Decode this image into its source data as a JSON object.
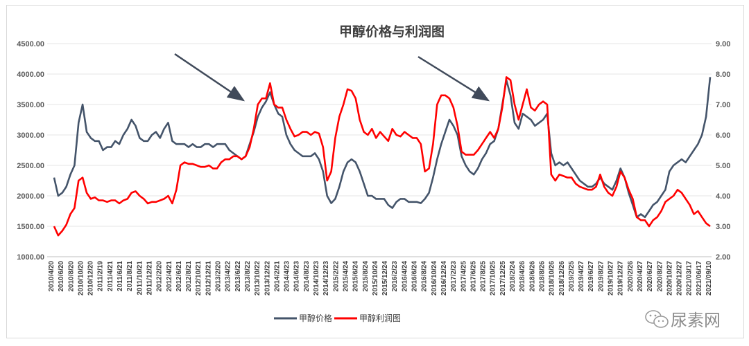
{
  "chart_data": {
    "type": "line",
    "title": "甲醇价格与利润图",
    "left_axis": {
      "min": 1000,
      "max": 4500,
      "step": 500,
      "ticks": [
        "1000.00",
        "1500.00",
        "2000.00",
        "2500.00",
        "3000.00",
        "3500.00",
        "4000.00",
        "4500.00"
      ]
    },
    "right_axis": {
      "min": 2,
      "max": 9,
      "step": 1,
      "ticks": [
        "2.00",
        "3.00",
        "4.00",
        "5.00",
        "6.00",
        "7.00",
        "8.00",
        "9.00"
      ]
    },
    "x_ticks": [
      "2010/4/20",
      "2010/6/20",
      "2010/8/20",
      "2010/10/20",
      "2010/12/20",
      "2011/2/19",
      "2011/4/21",
      "2011/6/21",
      "2011/8/21",
      "2011/10/21",
      "2011/12/21",
      "2012/2/20",
      "2012/4/21",
      "2012/6/21",
      "2012/8/21",
      "2012/10/21",
      "2012/12/21",
      "2013/2/20",
      "2013/4/22",
      "2013/6/22",
      "2013/8/22",
      "2013/10/22",
      "2013/12/22",
      "2014/2/21",
      "2014/4/23",
      "2014/6/23",
      "2014/8/23",
      "2014/10/23",
      "2014/12/23",
      "2015/2/22",
      "2015/4/24",
      "2015/6/24",
      "2015/8/24",
      "2015/10/24",
      "2015/12/24",
      "2016/2/23",
      "2016/4/24",
      "2016/6/24",
      "2016/8/24",
      "2016/10/24",
      "2016/12/24",
      "2017/2/23",
      "2017/4/25",
      "2017/6/25",
      "2017/8/25",
      "2017/10/25",
      "2017/12/25",
      "2018/2/24",
      "2018/4/26",
      "2018/6/26",
      "2018/8/26",
      "2018/10/26",
      "2018/12/26",
      "2019/2/25",
      "2019/4/27",
      "2019/6/27",
      "2019/8/27",
      "2019/10/27",
      "2019/12/27",
      "2020/2/26",
      "2020/4/27",
      "2020/6/27",
      "2020/8/27",
      "2020/10/27",
      "2020/12/27",
      "2021/03/17",
      "2021/06/17",
      "2021/09/10"
    ],
    "series": [
      {
        "name": "甲醇价格",
        "axis": "left",
        "color": "#44546a",
        "values": [
          2300,
          2000,
          2050,
          2150,
          2350,
          2500,
          3200,
          3500,
          3050,
          2950,
          2900,
          2900,
          2750,
          2800,
          2800,
          2900,
          2850,
          3000,
          3100,
          3250,
          3150,
          2950,
          2900,
          2900,
          3000,
          3050,
          2950,
          3100,
          3200,
          2900,
          2850,
          2850,
          2850,
          2800,
          2850,
          2800,
          2800,
          2850,
          2850,
          2800,
          2850,
          2850,
          2850,
          2750,
          2700,
          2650,
          2600,
          2650,
          2850,
          3050,
          3300,
          3450,
          3550,
          3700,
          3500,
          3350,
          3300,
          3000,
          2850,
          2750,
          2700,
          2650,
          2650,
          2650,
          2700,
          2600,
          2400,
          2000,
          1880,
          1950,
          2150,
          2400,
          2550,
          2600,
          2550,
          2400,
          2200,
          2000,
          2000,
          1950,
          1950,
          1950,
          1850,
          1800,
          1900,
          1950,
          1950,
          1900,
          1900,
          1900,
          1880,
          1950,
          2050,
          2300,
          2600,
          2850,
          3050,
          3250,
          3150,
          3000,
          2650,
          2500,
          2400,
          2350,
          2450,
          2600,
          2700,
          2850,
          2900,
          3100,
          3500,
          3900,
          3650,
          3200,
          3100,
          3350,
          3300,
          3250,
          3150,
          3200,
          3250,
          3350,
          2700,
          2500,
          2550,
          2500,
          2550,
          2450,
          2350,
          2250,
          2200,
          2150,
          2150,
          2200,
          2300,
          2200,
          2150,
          2100,
          2250,
          2450,
          2300,
          2050,
          1850,
          1650,
          1700,
          1650,
          1750,
          1850,
          1900,
          2000,
          2100,
          2400,
          2500,
          2550,
          2600,
          2550,
          2650,
          2750,
          2850,
          3000,
          3300,
          3950
        ]
      },
      {
        "name": "甲醇利润图",
        "axis": "right",
        "color": "#ff0000",
        "values": [
          3.0,
          2.7,
          2.85,
          3.05,
          3.4,
          3.6,
          4.5,
          4.6,
          4.1,
          3.9,
          3.95,
          3.85,
          3.85,
          3.8,
          3.85,
          3.85,
          3.75,
          3.85,
          3.9,
          4.1,
          4.15,
          4.0,
          3.9,
          3.75,
          3.8,
          3.8,
          3.85,
          3.9,
          4.0,
          3.75,
          4.2,
          5.0,
          5.1,
          5.05,
          5.05,
          5.0,
          4.95,
          4.95,
          5.0,
          4.9,
          4.9,
          5.1,
          5.2,
          5.2,
          5.3,
          5.3,
          5.2,
          5.3,
          5.6,
          6.2,
          7.0,
          7.2,
          7.2,
          7.7,
          7.0,
          6.9,
          6.9,
          6.5,
          6.2,
          5.95,
          6.0,
          6.1,
          6.1,
          6.0,
          6.1,
          6.05,
          5.6,
          4.5,
          4.8,
          5.9,
          6.6,
          7.0,
          7.5,
          7.45,
          7.2,
          6.5,
          6.1,
          6.0,
          6.2,
          5.9,
          6.1,
          5.95,
          5.8,
          6.2,
          6.0,
          5.95,
          6.1,
          6.0,
          5.9,
          5.9,
          5.7,
          4.8,
          4.9,
          5.7,
          7.0,
          7.3,
          7.3,
          7.2,
          6.9,
          6.3,
          5.45,
          5.35,
          5.35,
          5.35,
          5.5,
          5.7,
          5.9,
          6.1,
          5.9,
          6.2,
          6.9,
          7.9,
          7.8,
          7.0,
          6.5,
          7.0,
          7.5,
          6.9,
          6.8,
          7.0,
          7.1,
          7.0,
          4.7,
          4.5,
          4.7,
          4.65,
          4.6,
          4.6,
          4.4,
          4.3,
          4.25,
          4.2,
          4.2,
          4.3,
          4.7,
          4.3,
          4.1,
          4.0,
          4.3,
          4.8,
          4.6,
          4.2,
          3.9,
          3.3,
          3.2,
          3.2,
          3.0,
          3.2,
          3.3,
          3.5,
          3.8,
          3.9,
          4.0,
          4.2,
          4.1,
          3.9,
          3.7,
          3.4,
          3.5,
          3.3,
          3.1,
          3.0
        ]
      }
    ],
    "legend": {
      "position": "bottom",
      "items": [
        "甲醇价格",
        "甲醇利润图"
      ]
    },
    "annotations": [
      {
        "type": "arrow",
        "target": "2013 peak"
      },
      {
        "type": "arrow",
        "target": "2017/2018 peak"
      }
    ]
  },
  "watermark": {
    "text": "尿素网",
    "icon": "wechat-icon"
  }
}
